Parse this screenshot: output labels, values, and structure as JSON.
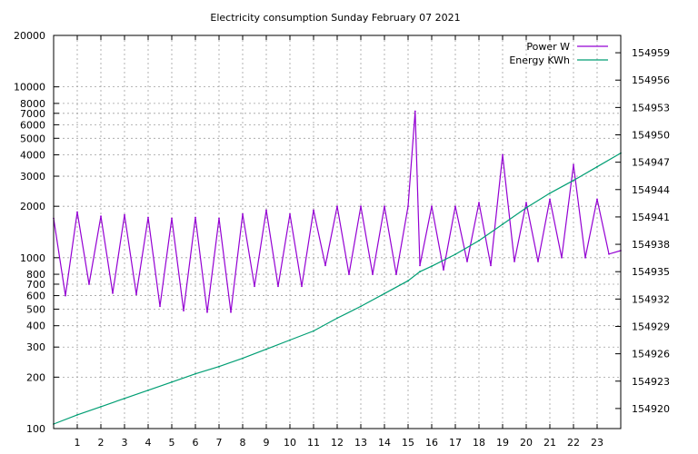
{
  "chart_data": {
    "type": "line",
    "title": "Electricity consumption Sunday February 07 2021",
    "xlabel": "",
    "ylabel": "",
    "x_range": [
      0,
      24
    ],
    "x_ticks": [
      "1",
      "2",
      "3",
      "4",
      "5",
      "6",
      "7",
      "8",
      "9",
      "10",
      "11",
      "12",
      "13",
      "14",
      "15",
      "16",
      "17",
      "18",
      "19",
      "20",
      "21",
      "22",
      "23"
    ],
    "y_scale": "log",
    "y_range": [
      100,
      20000
    ],
    "y_ticks": [
      {
        "value": 100,
        "label": "100"
      },
      {
        "value": 200,
        "label": "200"
      },
      {
        "value": 300,
        "label": "300"
      },
      {
        "value": 400,
        "label": "400"
      },
      {
        "value": 500,
        "label": "500"
      },
      {
        "value": 600,
        "label": "600"
      },
      {
        "value": 700,
        "label": "700"
      },
      {
        "value": 800,
        "label": "800"
      },
      {
        "value": 1000,
        "label": "1000"
      },
      {
        "value": 2000,
        "label": "2000"
      },
      {
        "value": 3000,
        "label": "3000"
      },
      {
        "value": 4000,
        "label": "4000"
      },
      {
        "value": 5000,
        "label": "5000"
      },
      {
        "value": 6000,
        "label": "6000"
      },
      {
        "value": 7000,
        "label": "7000"
      },
      {
        "value": 8000,
        "label": "8000"
      },
      {
        "value": 10000,
        "label": "10000"
      },
      {
        "value": 20000,
        "label": "20000"
      }
    ],
    "y2_range": [
      154917.8,
      154960.9
    ],
    "y2_ticks": [
      {
        "value": 154920,
        "label": "154920"
      },
      {
        "value": 154923,
        "label": "154923"
      },
      {
        "value": 154926,
        "label": "154926"
      },
      {
        "value": 154929,
        "label": "154929"
      },
      {
        "value": 154932,
        "label": "154932"
      },
      {
        "value": 154935,
        "label": "154935"
      },
      {
        "value": 154938,
        "label": "154938"
      },
      {
        "value": 154941,
        "label": "154941"
      },
      {
        "value": 154944,
        "label": "154944"
      },
      {
        "value": 154947,
        "label": "154947"
      },
      {
        "value": 154950,
        "label": "154950"
      },
      {
        "value": 154953,
        "label": "154953"
      },
      {
        "value": 154956,
        "label": "154956"
      },
      {
        "value": 154959,
        "label": "154959"
      }
    ],
    "grid": true,
    "legend_position": "top-right",
    "series": [
      {
        "name": "Power W",
        "axis": "y",
        "color": "#9400d3",
        "x": [
          0,
          0.5,
          1,
          1.5,
          2,
          2.5,
          3,
          3.5,
          4,
          4.5,
          5,
          5.5,
          6,
          6.5,
          7,
          7.5,
          8,
          8.5,
          9,
          9.5,
          10,
          10.5,
          11,
          11.5,
          12,
          12.5,
          13,
          13.5,
          14,
          14.5,
          15,
          15.3,
          15.5,
          16,
          16.5,
          17,
          17.5,
          18,
          18.5,
          19,
          19.5,
          20,
          20.5,
          21,
          21.5,
          22,
          22.5,
          23,
          23.5,
          24
        ],
        "y": [
          1700,
          600,
          1850,
          700,
          1750,
          620,
          1780,
          610,
          1720,
          520,
          1700,
          490,
          1720,
          480,
          1700,
          480,
          1800,
          680,
          1900,
          680,
          1800,
          680,
          1900,
          900,
          2000,
          800,
          2000,
          800,
          2000,
          800,
          2000,
          7200,
          900,
          2000,
          850,
          2000,
          950,
          2100,
          900,
          4000,
          950,
          2100,
          950,
          2200,
          1000,
          3500,
          1000,
          2200,
          1050,
          1100
        ]
      },
      {
        "name": "Energy KWh",
        "axis": "y2",
        "color": "#009e73",
        "x": [
          0,
          1,
          2,
          3,
          4,
          5,
          6,
          7,
          8,
          9,
          10,
          11,
          12,
          13,
          14,
          15,
          15.5,
          16,
          17,
          18,
          19,
          20,
          21,
          22,
          23,
          24
        ],
        "y": [
          154918.3,
          154919.3,
          154920.2,
          154921.1,
          154922.0,
          154922.9,
          154923.8,
          154924.6,
          154925.5,
          154926.5,
          154927.5,
          154928.5,
          154929.9,
          154931.2,
          154932.6,
          154934.0,
          154935.0,
          154935.6,
          154936.9,
          154938.4,
          154940.2,
          154942.0,
          154943.6,
          154945.0,
          154946.5,
          154948.0
        ]
      }
    ]
  }
}
